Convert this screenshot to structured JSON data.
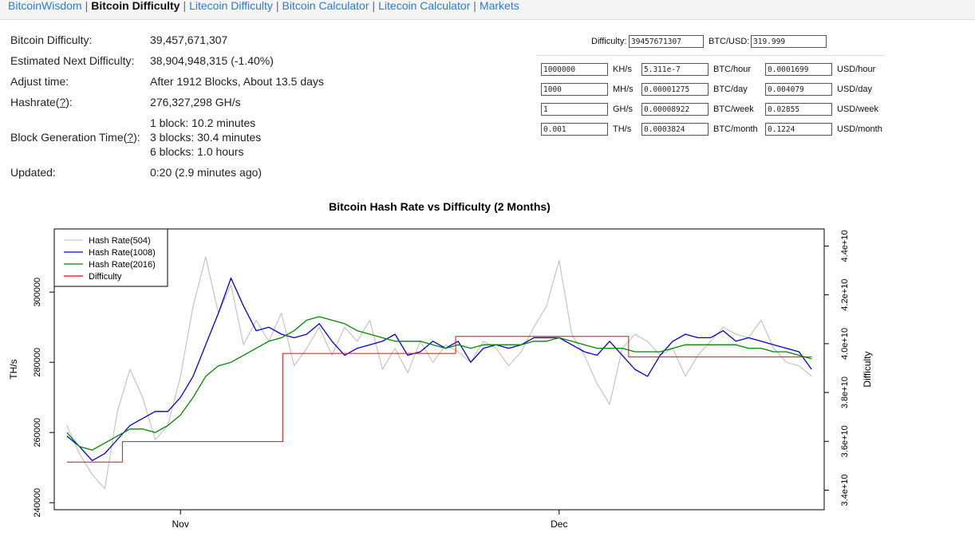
{
  "nav": {
    "items": [
      {
        "label": "BitcoinWisdom",
        "active": false
      },
      {
        "label": "Bitcoin Difficulty",
        "active": true
      },
      {
        "label": "Litecoin Difficulty",
        "active": false
      },
      {
        "label": "Bitcoin Calculator",
        "active": false
      },
      {
        "label": "Litecoin Calculator",
        "active": false
      },
      {
        "label": "Markets",
        "active": false
      }
    ],
    "separator": "|"
  },
  "stats": {
    "difficulty_label": "Bitcoin Difficulty:",
    "difficulty_value": "39,457,671,307",
    "next_label": "Estimated Next Difficulty:",
    "next_value": "38,904,948,315 (-1.40%)",
    "adjust_label": "Adjust time:",
    "adjust_value": "After 1912 Blocks, About 13.5 days",
    "hashrate_label_pre": "Hashrate(",
    "help_mark": "?",
    "hashrate_label_post": "):",
    "hashrate_value": "276,327,298 GH/s",
    "blocktime_label_pre": "Block Generation Time(",
    "blocktime_label_post": "):",
    "blocktime_values": [
      "1 block: 10.2 minutes",
      "3 blocks: 30.4 minutes",
      "6 blocks: 1.0 hours"
    ],
    "updated_label": "Updated:",
    "updated_value": "0:20 (2.9 minutes ago)"
  },
  "calculator": {
    "difficulty_label": "Difficulty:",
    "difficulty_value": "39457671307",
    "price_label": "BTC/USD:",
    "price_value": "319.999",
    "rows": [
      {
        "hash": "1000000",
        "unit": "KH/s",
        "btc": "5.311e-7",
        "btc_unit": "BTC/hour",
        "usd": "0.0001699",
        "usd_unit": "USD/hour"
      },
      {
        "hash": "1000",
        "unit": "MH/s",
        "btc": "0.00001275",
        "btc_unit": "BTC/day",
        "usd": "0.004079",
        "usd_unit": "USD/day"
      },
      {
        "hash": "1",
        "unit": "GH/s",
        "btc": "0.00008922",
        "btc_unit": "BTC/week",
        "usd": "0.02855",
        "usd_unit": "USD/week"
      },
      {
        "hash": "0.001",
        "unit": "TH/s",
        "btc": "0.0003824",
        "btc_unit": "BTC/month",
        "usd": "0.1224",
        "usd_unit": "USD/month"
      }
    ]
  },
  "chart_data": {
    "type": "line",
    "title": "Bitcoin Hash Rate vs Difficulty (2 Months)",
    "ylabel": "TH/s",
    "y2label": "Difficulty",
    "ylim": [
      238000,
      318000
    ],
    "y2lim": [
      33200000000,
      44700000000
    ],
    "xlim": [
      0,
      61
    ],
    "x_ticks": [
      {
        "x": 10,
        "label": "Nov"
      },
      {
        "x": 40,
        "label": "Dec"
      }
    ],
    "y_ticks": [
      {
        "v": 240000,
        "label": "240000"
      },
      {
        "v": 260000,
        "label": "260000"
      },
      {
        "v": 280000,
        "label": "280000"
      },
      {
        "v": 300000,
        "label": "300000"
      }
    ],
    "y2_ticks": [
      {
        "v": 34000000000,
        "label": "3.4e+10"
      },
      {
        "v": 36000000000,
        "label": "3.6e+10"
      },
      {
        "v": 38000000000,
        "label": "3.8e+10"
      },
      {
        "v": 40000000000,
        "label": "4.0e+10"
      },
      {
        "v": 42000000000,
        "label": "4.2e+10"
      },
      {
        "v": 44000000000,
        "label": "4.4e+10"
      }
    ],
    "legend": "top-left",
    "series": [
      {
        "name": "Hash Rate(504)",
        "color": "#c8c8c8",
        "axis": "left",
        "x": [
          1,
          2,
          3,
          4,
          5,
          6,
          7,
          8,
          9,
          10,
          11,
          12,
          13,
          14,
          15,
          16,
          17,
          18,
          19,
          20,
          21,
          22,
          23,
          24,
          25,
          26,
          27,
          28,
          29,
          30,
          31,
          32,
          33,
          34,
          35,
          36,
          37,
          38,
          39,
          40,
          41,
          42,
          43,
          44,
          45,
          46,
          47,
          48,
          49,
          50,
          51,
          52,
          53,
          54,
          55,
          56,
          57,
          58,
          59,
          60
        ],
        "y": [
          262000,
          254000,
          248000,
          244000,
          266000,
          278000,
          270000,
          258000,
          262000,
          276000,
          296000,
          310000,
          294000,
          302000,
          285000,
          292000,
          286000,
          294000,
          279000,
          284000,
          290000,
          282000,
          290000,
          286000,
          292000,
          278000,
          284000,
          277000,
          286000,
          280000,
          285000,
          283000,
          280000,
          286000,
          284000,
          279000,
          283000,
          290000,
          296000,
          309000,
          288000,
          282000,
          274000,
          268000,
          284000,
          288000,
          286000,
          282000,
          284000,
          276000,
          282000,
          286000,
          290000,
          288000,
          287000,
          292000,
          284000,
          280000,
          279000,
          276000
        ]
      },
      {
        "name": "Hash Rate(1008)",
        "color": "#0000dd",
        "axis": "left",
        "x": [
          1,
          2,
          3,
          4,
          5,
          6,
          7,
          8,
          9,
          10,
          11,
          12,
          13,
          14,
          15,
          16,
          17,
          18,
          19,
          20,
          21,
          22,
          23,
          24,
          25,
          26,
          27,
          28,
          29,
          30,
          31,
          32,
          33,
          34,
          35,
          36,
          37,
          38,
          39,
          40,
          41,
          42,
          43,
          44,
          45,
          46,
          47,
          48,
          49,
          50,
          51,
          52,
          53,
          54,
          55,
          56,
          57,
          58,
          59,
          60
        ],
        "y": [
          259000,
          256000,
          252000,
          254000,
          258000,
          262000,
          264000,
          266000,
          266000,
          270000,
          276000,
          285000,
          294000,
          304000,
          296000,
          289000,
          290000,
          288000,
          287000,
          288000,
          291000,
          286000,
          282000,
          284000,
          285000,
          286000,
          288000,
          282000,
          283000,
          286000,
          284000,
          286000,
          280000,
          284000,
          285000,
          284000,
          285000,
          287000,
          287000,
          287000,
          285000,
          283000,
          282000,
          286000,
          282000,
          278000,
          276000,
          282000,
          286000,
          288000,
          287000,
          287000,
          289000,
          286000,
          287000,
          286000,
          285000,
          284000,
          283000,
          278000
        ]
      },
      {
        "name": "Hash Rate(2016)",
        "color": "#008800",
        "axis": "left",
        "x": [
          1,
          2,
          3,
          4,
          5,
          6,
          7,
          8,
          9,
          10,
          11,
          12,
          13,
          14,
          15,
          16,
          17,
          18,
          19,
          20,
          21,
          22,
          23,
          24,
          25,
          26,
          27,
          28,
          29,
          30,
          31,
          32,
          33,
          34,
          35,
          36,
          37,
          38,
          39,
          40,
          41,
          42,
          43,
          44,
          45,
          46,
          47,
          48,
          49,
          50,
          51,
          52,
          53,
          54,
          55,
          56,
          57,
          58,
          59,
          60
        ],
        "y": [
          260000,
          256000,
          255000,
          257000,
          259000,
          261000,
          261000,
          260000,
          262000,
          265000,
          270000,
          276000,
          279000,
          280000,
          282000,
          284000,
          286000,
          287000,
          289000,
          292000,
          293000,
          292000,
          291000,
          289000,
          288000,
          287000,
          286000,
          286000,
          286000,
          285000,
          284000,
          285000,
          284000,
          285000,
          285000,
          285000,
          285000,
          286000,
          286000,
          287000,
          286000,
          285000,
          284000,
          284000,
          284000,
          283000,
          283000,
          283000,
          284000,
          285000,
          285000,
          285000,
          285000,
          285000,
          284000,
          284000,
          283000,
          283000,
          282000,
          281000
        ]
      },
      {
        "name": "Difficulty",
        "color": "#ff0000",
        "axis": "right",
        "step": true,
        "x": [
          1,
          5.4,
          5.4,
          18.1,
          18.1,
          31.8,
          31.8,
          45.5,
          45.5,
          60
        ],
        "y": [
          35150000000,
          35150000000,
          35990000000,
          35990000000,
          39600000000,
          39600000000,
          40300000000,
          40300000000,
          39460000000,
          39460000000
        ]
      }
    ]
  }
}
